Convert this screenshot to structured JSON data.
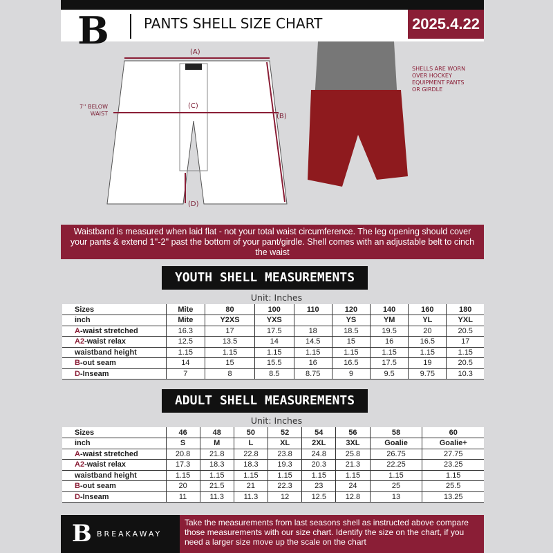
{
  "header": {
    "logo": "B",
    "title": "PANTS SHELL SIZE CHART",
    "date": "2025.4.22"
  },
  "diagram": {
    "a": "(A)",
    "b": "(B)",
    "c": "(C)",
    "d": "(D)",
    "below_waist": "7'' BELOW WAIST",
    "note": "SHELLS ARE WORN OVER HOCKEY EQUIPMENT PANTS OR GIRDLE"
  },
  "info": "Waistband is measured when laid flat - not your total waist circumference. The leg opening should cover your pants & extend 1''-2'' past the bottom of your pant/girdle. Shell comes with an adjustable belt to cinch the waist",
  "youth": {
    "title": "YOUTH SHELL MEASUREMENTS",
    "unit": "Unit: Inches",
    "rows": [
      {
        "p": "",
        "l": "Sizes",
        "v": [
          "Mite",
          "80",
          "100",
          "110",
          "120",
          "140",
          "160",
          "180"
        ]
      },
      {
        "p": "",
        "l": "inch",
        "v": [
          "Mite",
          "Y2XS",
          "YXS",
          "",
          "YS",
          "YM",
          "YL",
          "YXL"
        ]
      },
      {
        "p": "A",
        "l": "-waist stretched",
        "v": [
          "16.3",
          "17",
          "17.5",
          "18",
          "18.5",
          "19.5",
          "20",
          "20.5"
        ]
      },
      {
        "p": "A2",
        "l": "-waist relax",
        "v": [
          "12.5",
          "13.5",
          "14",
          "14.5",
          "15",
          "16",
          "16.5",
          "17"
        ]
      },
      {
        "p": "",
        "l": "waistband height",
        "v": [
          "1.15",
          "1.15",
          "1.15",
          "1.15",
          "1.15",
          "1.15",
          "1.15",
          "1.15"
        ]
      },
      {
        "p": "B",
        "l": "-out seam",
        "v": [
          "14",
          "15",
          "15.5",
          "16",
          "16.5",
          "17.5",
          "19",
          "20.5"
        ]
      },
      {
        "p": "D",
        "l": "-Inseam",
        "v": [
          "7",
          "8",
          "8.5",
          "8.75",
          "9",
          "9.5",
          "9.75",
          "10.3"
        ]
      }
    ]
  },
  "adult": {
    "title": "ADULT SHELL MEASUREMENTS",
    "unit": "Unit: Inches",
    "rows": [
      {
        "p": "",
        "l": "Sizes",
        "v": [
          "46",
          "48",
          "50",
          "52",
          "54",
          "56",
          "58",
          "60"
        ]
      },
      {
        "p": "",
        "l": "inch",
        "v": [
          "S",
          "M",
          "L",
          "XL",
          "2XL",
          "3XL",
          "Goalie",
          "Goalie+"
        ]
      },
      {
        "p": "A",
        "l": "-waist stretched",
        "v": [
          "20.8",
          "21.8",
          "22.8",
          "23.8",
          "24.8",
          "25.8",
          "26.75",
          "27.75"
        ]
      },
      {
        "p": "A2",
        "l": "-waist relax",
        "v": [
          "17.3",
          "18.3",
          "18.3",
          "19.3",
          "20.3",
          "21.3",
          "22.25",
          "23.25"
        ]
      },
      {
        "p": "",
        "l": "waistband height",
        "v": [
          "1.15",
          "1.15",
          "1.15",
          "1.15",
          "1.15",
          "1.15",
          "1.15",
          "1.15"
        ]
      },
      {
        "p": "B",
        "l": "-out seam",
        "v": [
          "20",
          "21.5",
          "21",
          "22.3",
          "23",
          "24",
          "25",
          "25.5"
        ]
      },
      {
        "p": "D",
        "l": "-Inseam",
        "v": [
          "11",
          "11.3",
          "11.3",
          "12",
          "12.5",
          "12.8",
          "13",
          "13.25"
        ]
      }
    ]
  },
  "footer": {
    "logo": "B",
    "brand": "BREAKAWAY",
    "text": "Take the measurements from last seasons shell as instructed above compare those measurements  with our size chart. Identify the size on the chart, if you need a larger size move up the scale on the chart"
  }
}
